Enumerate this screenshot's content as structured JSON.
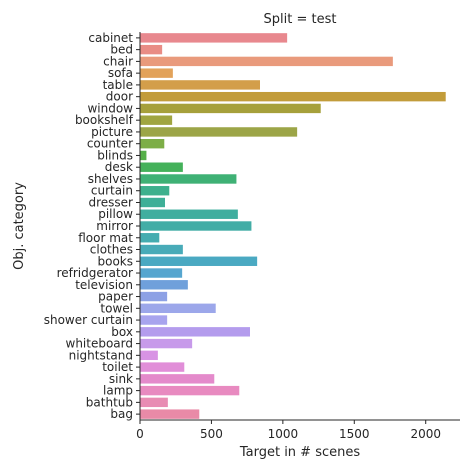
{
  "chart_data": {
    "type": "bar",
    "orientation": "horizontal",
    "title": "Split = test",
    "xlabel": "Target in # scenes",
    "ylabel": "Obj. category",
    "xlim": [
      0,
      2240
    ],
    "xticks": [
      0,
      500,
      1000,
      1500,
      2000
    ],
    "grid": false,
    "categories": [
      "cabinet",
      "bed",
      "chair",
      "sofa",
      "table",
      "door",
      "window",
      "bookshelf",
      "picture",
      "counter",
      "blinds",
      "desk",
      "shelves",
      "curtain",
      "dresser",
      "pillow",
      "mirror",
      "floor mat",
      "clothes",
      "books",
      "refridgerator",
      "television",
      "paper",
      "towel",
      "shower curtain",
      "box",
      "whiteboard",
      "nightstand",
      "toilet",
      "sink",
      "lamp",
      "bathtub",
      "bag"
    ],
    "values": [
      1030,
      155,
      1770,
      230,
      840,
      2140,
      1265,
      225,
      1100,
      170,
      45,
      300,
      675,
      205,
      175,
      685,
      780,
      135,
      300,
      820,
      295,
      335,
      190,
      530,
      190,
      770,
      365,
      125,
      310,
      520,
      695,
      195,
      415
    ],
    "colors": [
      "#e8888e",
      "#e98c85",
      "#e99a7c",
      "#e2a25a",
      "#d39e4a",
      "#c29c3a",
      "#a6a03b",
      "#a0a540",
      "#9ca547",
      "#7dae47",
      "#55b049",
      "#44b15a",
      "#3fb175",
      "#3eb08d",
      "#3eaf97",
      "#40ae9f",
      "#42ada6",
      "#45acb0",
      "#48abb8",
      "#4aa9c2",
      "#56a6cf",
      "#6fa0db",
      "#8da1e5",
      "#9ca7ea",
      "#a8a4ee",
      "#b49ced",
      "#c79aea",
      "#d893e4",
      "#e18ed8",
      "#e48acb",
      "#e88ac0",
      "#e88cb3",
      "#e98aa7"
    ]
  }
}
